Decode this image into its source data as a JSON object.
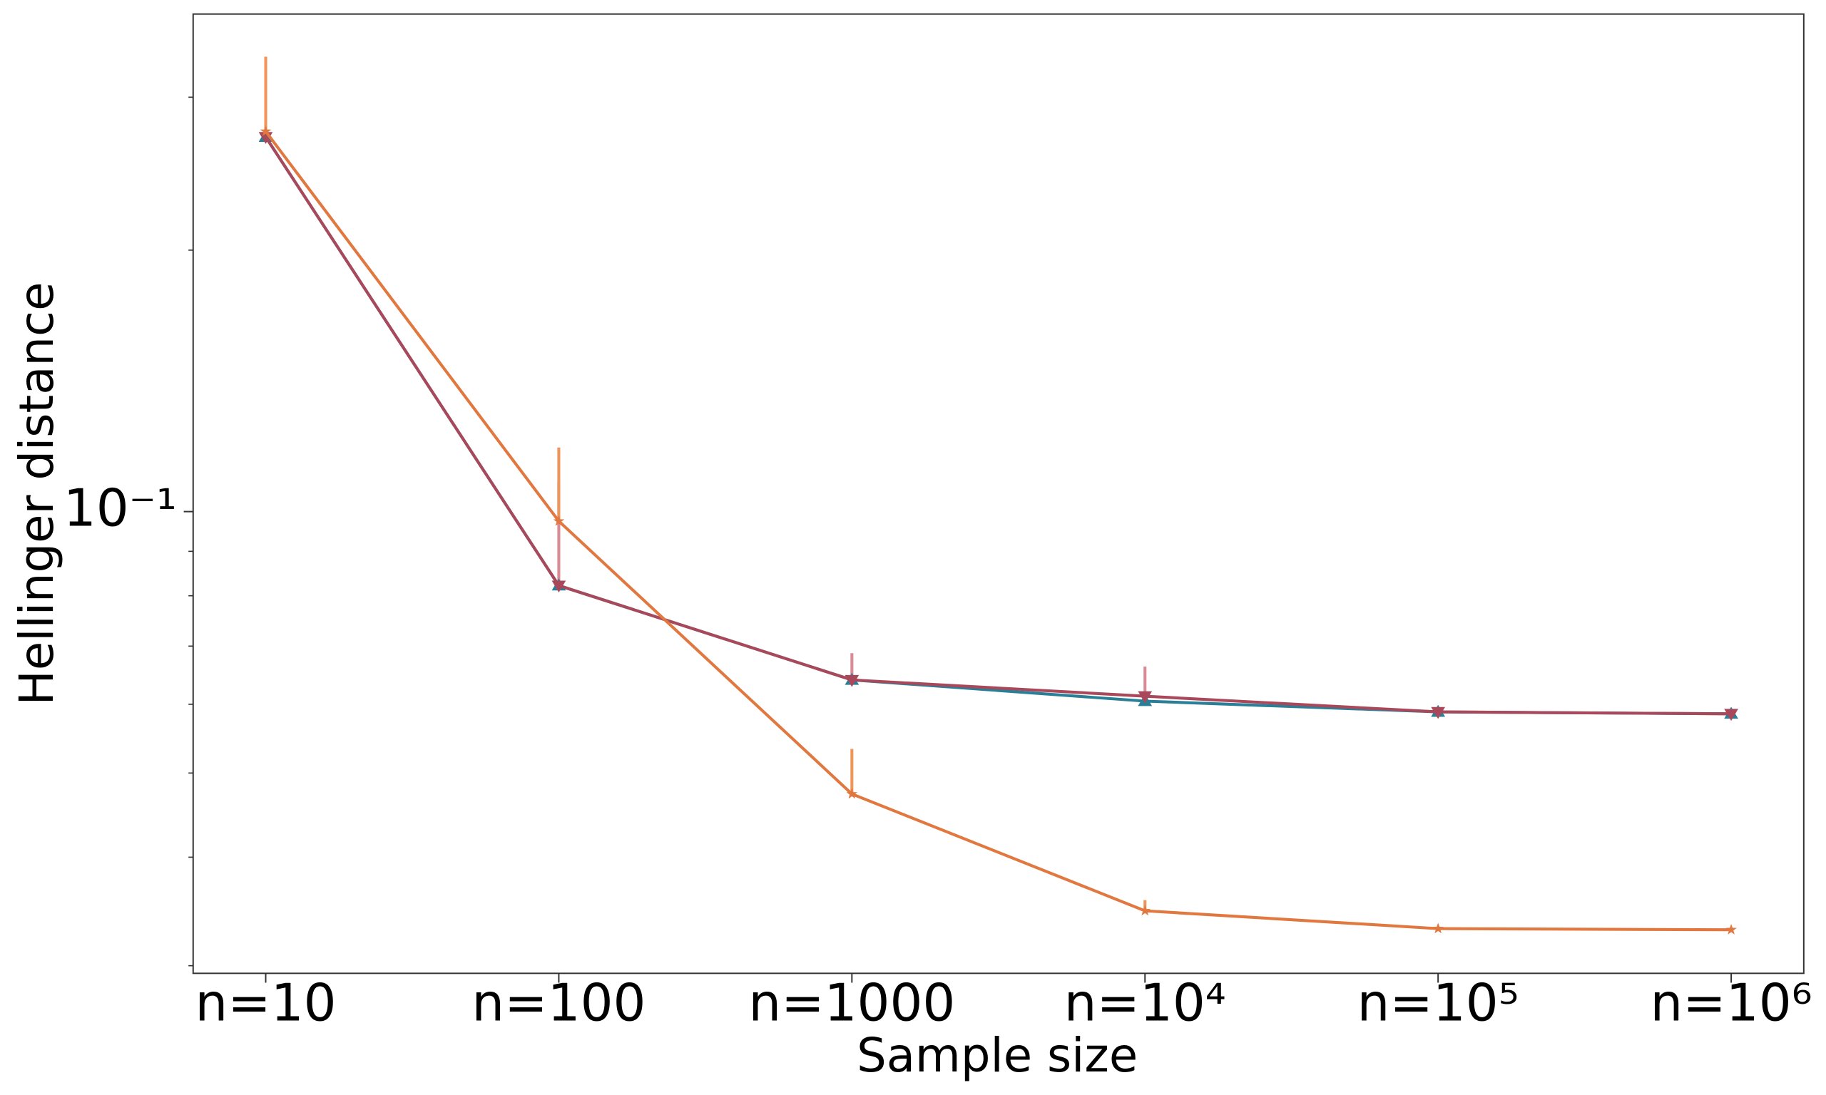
{
  "chart_data": {
    "type": "line",
    "x_label": "Sample size",
    "y_label": "Hellinger distance",
    "categories": [
      "n=10",
      "n=100",
      "n=1000",
      "n=10⁴",
      "n=10⁵",
      "n=10⁶"
    ],
    "y_log": true,
    "ylim": [
      0.0294,
      0.374
    ],
    "yticks": [
      {
        "value": 0.1,
        "label": "10⁻¹"
      }
    ],
    "minor_yticks": [
      0.03,
      0.04,
      0.05,
      0.06,
      0.07,
      0.08,
      0.09,
      0.2,
      0.3
    ],
    "series": [
      {
        "color": "#2a7f96",
        "marker": "triangle-up",
        "values": [
          0.27,
          0.0822,
          0.064,
          0.0605,
          0.0588,
          0.0585
        ],
        "errors": [
          null,
          null,
          null,
          null,
          null,
          null
        ],
        "error_color": "#5fa3b5"
      },
      {
        "color": "#a8485a",
        "marker": "triangle-down",
        "values": [
          0.27,
          0.0822,
          0.064,
          0.0613,
          0.0588,
          0.0585
        ],
        "errors": [
          null,
          0.026,
          0.0047,
          0.005,
          null,
          null
        ],
        "error_color": "#d98a95"
      },
      {
        "color": "#e07840",
        "marker": "star",
        "values": [
          0.274,
          0.0975,
          0.0473,
          0.0347,
          0.0331,
          0.033
        ],
        "errors": [
          0.06,
          0.021,
          0.006,
          0.001,
          null,
          null
        ],
        "error_color": "#f0955a"
      }
    ]
  }
}
